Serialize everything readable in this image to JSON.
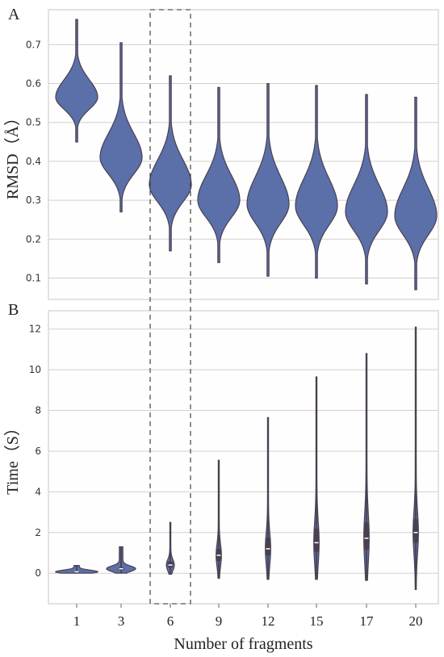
{
  "chart_data": [
    {
      "panel_label": "A",
      "type": "violin",
      "ylabel": "RMSD（Å）",
      "ylim": [
        0.045,
        0.79
      ],
      "yticks": [
        "0.1",
        "0.2",
        "0.3",
        "0.4",
        "0.5",
        "0.6",
        "0.7"
      ],
      "grid": "horizontal",
      "color": "#5b6fa8",
      "categories": [
        "1",
        "3",
        "6",
        "9",
        "12",
        "15",
        "17",
        "20"
      ],
      "violins": [
        {
          "min": 0.45,
          "max": 0.765,
          "median": 0.565
        },
        {
          "min": 0.27,
          "max": 0.705,
          "median": 0.41
        },
        {
          "min": 0.17,
          "max": 0.62,
          "median": 0.34
        },
        {
          "min": 0.14,
          "max": 0.59,
          "median": 0.3
        },
        {
          "min": 0.105,
          "max": 0.6,
          "median": 0.29
        },
        {
          "min": 0.1,
          "max": 0.595,
          "median": 0.285
        },
        {
          "min": 0.085,
          "max": 0.572,
          "median": 0.27
        },
        {
          "min": 0.07,
          "max": 0.565,
          "median": 0.26
        }
      ]
    },
    {
      "panel_label": "B",
      "type": "violin",
      "ylabel": "Time（S）",
      "xlabel": "Number of fragments",
      "ylim": [
        -1.5,
        12.9
      ],
      "yticks": [
        "0",
        "2",
        "4",
        "6",
        "8",
        "10",
        "12"
      ],
      "grid": "horizontal",
      "color": "#5b6fa8",
      "categories": [
        "1",
        "3",
        "6",
        "9",
        "12",
        "15",
        "17",
        "20"
      ],
      "violins": [
        {
          "min": 0.0,
          "max": 0.38,
          "median": 0.07,
          "q1": 0.05,
          "q3": 0.1
        },
        {
          "min": 0.0,
          "max": 1.3,
          "median": 0.22,
          "q1": 0.15,
          "q3": 0.3
        },
        {
          "min": -0.05,
          "max": 2.5,
          "median": 0.4,
          "q1": 0.28,
          "q3": 0.58
        },
        {
          "min": -0.25,
          "max": 5.55,
          "median": 0.88,
          "q1": 0.6,
          "q3": 1.2
        },
        {
          "min": -0.3,
          "max": 7.65,
          "median": 1.2,
          "q1": 0.88,
          "q3": 1.75
        },
        {
          "min": -0.3,
          "max": 9.65,
          "median": 1.5,
          "q1": 1.05,
          "q3": 2.2
        },
        {
          "min": -0.35,
          "max": 10.8,
          "median": 1.72,
          "q1": 1.15,
          "q3": 2.5
        },
        {
          "min": -0.8,
          "max": 12.1,
          "median": 2.0,
          "q1": 1.5,
          "q3": 2.65
        }
      ]
    }
  ],
  "highlight_category": "6"
}
